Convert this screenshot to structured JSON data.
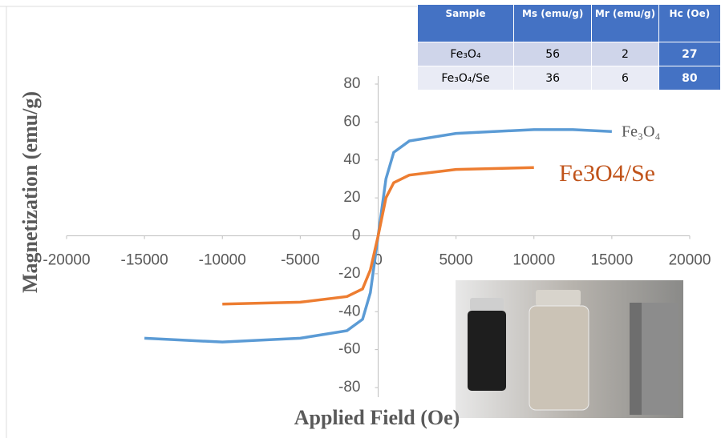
{
  "chart_data": {
    "type": "line",
    "x_label": "Applied Field (Oe)",
    "y_label": "Magnetization (emu/g)",
    "xlim": [
      -20000,
      20000
    ],
    "xticks": [
      -20000,
      -15000,
      -10000,
      -5000,
      0,
      5000,
      10000,
      15000,
      20000
    ],
    "ylim": [
      -80,
      80
    ],
    "yticks": [
      -80,
      -60,
      -40,
      -20,
      0,
      20,
      40,
      60,
      80
    ],
    "series": [
      {
        "name": "Fe₃O₄",
        "color": "#5b9bd5",
        "x": [
          -15000,
          -10000,
          -5000,
          -2000,
          -1000,
          -500,
          0,
          500,
          1000,
          2000,
          5000,
          10000,
          12500,
          15000
        ],
        "values": [
          -54,
          -56,
          -54,
          -50,
          -44,
          -30,
          0,
          30,
          44,
          50,
          54,
          56,
          56,
          55
        ]
      },
      {
        "name": "Fe3O4/Se",
        "color": "#ed7d31",
        "x": [
          -10000,
          -5000,
          -2000,
          -1000,
          -500,
          0,
          500,
          1000,
          2000,
          5000,
          10000
        ],
        "values": [
          -36,
          -35,
          -32,
          -28,
          -18,
          0,
          20,
          28,
          32,
          35,
          36
        ]
      }
    ]
  },
  "table": {
    "columns": [
      "Sample",
      "Ms (emu/g)",
      "Mr (emu/g)",
      "Hc (Oe)"
    ],
    "rows": [
      [
        "Fe₃O₄",
        56,
        2,
        27
      ],
      [
        "Fe₃O₄/Se",
        36,
        6,
        80
      ]
    ]
  }
}
